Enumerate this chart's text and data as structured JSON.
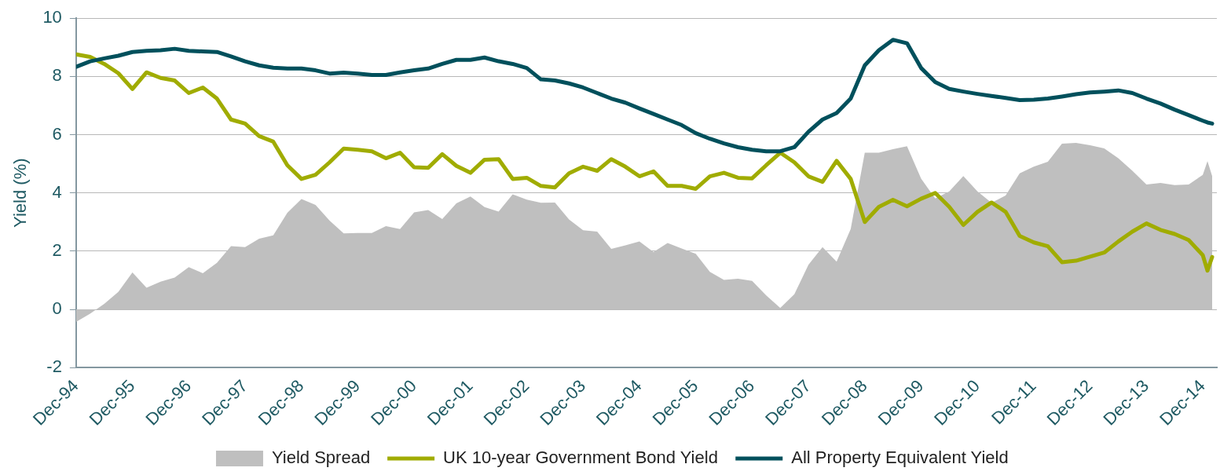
{
  "chart_data": {
    "type": "line",
    "ylabel": "Yield (%)",
    "ylim": [
      -2,
      10
    ],
    "yticks": [
      -2,
      0,
      2,
      4,
      6,
      8,
      10
    ],
    "grid": "y",
    "legend": "bottom",
    "xlim": [
      "1994-12",
      "2015-03"
    ],
    "xticks": [
      {
        "value": "1994-12",
        "label": "Dec-94"
      },
      {
        "value": "1995-12",
        "label": "Dec-95"
      },
      {
        "value": "1996-12",
        "label": "Dec-96"
      },
      {
        "value": "1997-12",
        "label": "Dec-97"
      },
      {
        "value": "1998-12",
        "label": "Dec-98"
      },
      {
        "value": "1999-12",
        "label": "Dec-99"
      },
      {
        "value": "2000-12",
        "label": "Dec-00"
      },
      {
        "value": "2001-12",
        "label": "Dec-01"
      },
      {
        "value": "2002-12",
        "label": "Dec-02"
      },
      {
        "value": "2003-12",
        "label": "Dec-03"
      },
      {
        "value": "2004-12",
        "label": "Dec-04"
      },
      {
        "value": "2005-12",
        "label": "Dec-05"
      },
      {
        "value": "2006-12",
        "label": "Dec-06"
      },
      {
        "value": "2007-12",
        "label": "Dec-07"
      },
      {
        "value": "2008-12",
        "label": "Dec-08"
      },
      {
        "value": "2009-12",
        "label": "Dec-09"
      },
      {
        "value": "2010-12",
        "label": "Dec-10"
      },
      {
        "value": "2011-12",
        "label": "Dec-11"
      },
      {
        "value": "2012-12",
        "label": "Dec-12"
      },
      {
        "value": "2013-12",
        "label": "Dec-13"
      },
      {
        "value": "2014-12",
        "label": "Dec-14"
      }
    ],
    "x": [
      "1994-12",
      "1995-03",
      "1995-06",
      "1995-09",
      "1995-12",
      "1996-03",
      "1996-06",
      "1996-09",
      "1996-12",
      "1997-03",
      "1997-06",
      "1997-09",
      "1997-12",
      "1998-03",
      "1998-06",
      "1998-09",
      "1998-12",
      "1999-03",
      "1999-06",
      "1999-09",
      "1999-12",
      "2000-03",
      "2000-06",
      "2000-09",
      "2000-12",
      "2001-03",
      "2001-06",
      "2001-09",
      "2001-12",
      "2002-03",
      "2002-06",
      "2002-09",
      "2002-12",
      "2003-03",
      "2003-06",
      "2003-09",
      "2003-12",
      "2004-03",
      "2004-06",
      "2004-09",
      "2004-12",
      "2005-03",
      "2005-06",
      "2005-09",
      "2005-12",
      "2006-03",
      "2006-06",
      "2006-09",
      "2006-12",
      "2007-03",
      "2007-06",
      "2007-09",
      "2007-12",
      "2008-03",
      "2008-06",
      "2008-09",
      "2008-12",
      "2009-03",
      "2009-06",
      "2009-09",
      "2009-12",
      "2010-03",
      "2010-06",
      "2010-09",
      "2010-12",
      "2011-03",
      "2011-06",
      "2011-09",
      "2011-12",
      "2012-03",
      "2012-06",
      "2012-09",
      "2012-12",
      "2013-03",
      "2013-06",
      "2013-09",
      "2013-12",
      "2014-03",
      "2014-06",
      "2014-09",
      "2014-12",
      "2015-01",
      "2015-02"
    ],
    "series": [
      {
        "name": "Yield Spread",
        "type": "area",
        "color": "#bfbfbf",
        "values": [
          -0.43,
          -0.15,
          0.19,
          0.6,
          1.27,
          0.74,
          0.95,
          1.09,
          1.45,
          1.24,
          1.6,
          2.17,
          2.14,
          2.43,
          2.54,
          3.32,
          3.79,
          3.59,
          3.05,
          2.61,
          2.62,
          2.62,
          2.86,
          2.76,
          3.33,
          3.41,
          3.1,
          3.64,
          3.88,
          3.51,
          3.36,
          3.95,
          3.77,
          3.66,
          3.67,
          3.09,
          2.72,
          2.67,
          2.08,
          2.2,
          2.33,
          1.97,
          2.28,
          2.09,
          1.91,
          1.29,
          1.01,
          1.05,
          0.98,
          0.48,
          0.05,
          0.52,
          1.53,
          2.14,
          1.64,
          2.76,
          5.38,
          5.38,
          5.5,
          5.6,
          4.49,
          3.81,
          4.05,
          4.58,
          4.05,
          3.66,
          3.91,
          4.67,
          4.9,
          5.07,
          5.69,
          5.72,
          5.64,
          5.53,
          5.19,
          4.76,
          4.29,
          4.34,
          4.27,
          4.29,
          4.62,
          5.09,
          4.58
        ]
      },
      {
        "name": "UK 10-year Government Bond Yield",
        "type": "line",
        "color": "#a0ac00",
        "values": [
          8.76,
          8.67,
          8.43,
          8.11,
          7.57,
          8.14,
          7.95,
          7.86,
          7.43,
          7.62,
          7.24,
          6.52,
          6.38,
          5.95,
          5.76,
          4.95,
          4.48,
          4.62,
          5.05,
          5.52,
          5.48,
          5.43,
          5.19,
          5.38,
          4.88,
          4.86,
          5.33,
          4.93,
          4.69,
          5.14,
          5.16,
          4.48,
          4.52,
          4.24,
          4.19,
          4.67,
          4.9,
          4.76,
          5.16,
          4.9,
          4.57,
          4.74,
          4.24,
          4.24,
          4.14,
          4.57,
          4.69,
          4.52,
          4.5,
          4.95,
          5.38,
          5.05,
          4.57,
          4.38,
          5.1,
          4.48,
          3.0,
          3.52,
          3.76,
          3.54,
          3.8,
          4.0,
          3.52,
          2.9,
          3.35,
          3.67,
          3.35,
          2.52,
          2.3,
          2.17,
          1.62,
          1.67,
          1.81,
          1.95,
          2.33,
          2.67,
          2.95,
          2.73,
          2.59,
          2.38,
          1.86,
          1.33,
          1.8
        ]
      },
      {
        "name": "All Property Equivalent Yield",
        "type": "line",
        "color": "#00505c",
        "values": [
          8.33,
          8.52,
          8.62,
          8.71,
          8.84,
          8.88,
          8.9,
          8.95,
          8.88,
          8.86,
          8.84,
          8.69,
          8.52,
          8.38,
          8.3,
          8.27,
          8.27,
          8.21,
          8.1,
          8.13,
          8.1,
          8.05,
          8.05,
          8.14,
          8.21,
          8.27,
          8.43,
          8.57,
          8.57,
          8.65,
          8.52,
          8.43,
          8.29,
          7.9,
          7.86,
          7.76,
          7.62,
          7.43,
          7.24,
          7.1,
          6.9,
          6.71,
          6.52,
          6.33,
          6.05,
          5.86,
          5.7,
          5.57,
          5.48,
          5.43,
          5.43,
          5.57,
          6.1,
          6.52,
          6.74,
          7.24,
          8.38,
          8.9,
          9.26,
          9.14,
          8.29,
          7.81,
          7.57,
          7.48,
          7.4,
          7.33,
          7.26,
          7.19,
          7.2,
          7.24,
          7.31,
          7.39,
          7.45,
          7.48,
          7.52,
          7.43,
          7.24,
          7.07,
          6.86,
          6.67,
          6.48,
          6.42,
          6.38
        ]
      }
    ]
  }
}
